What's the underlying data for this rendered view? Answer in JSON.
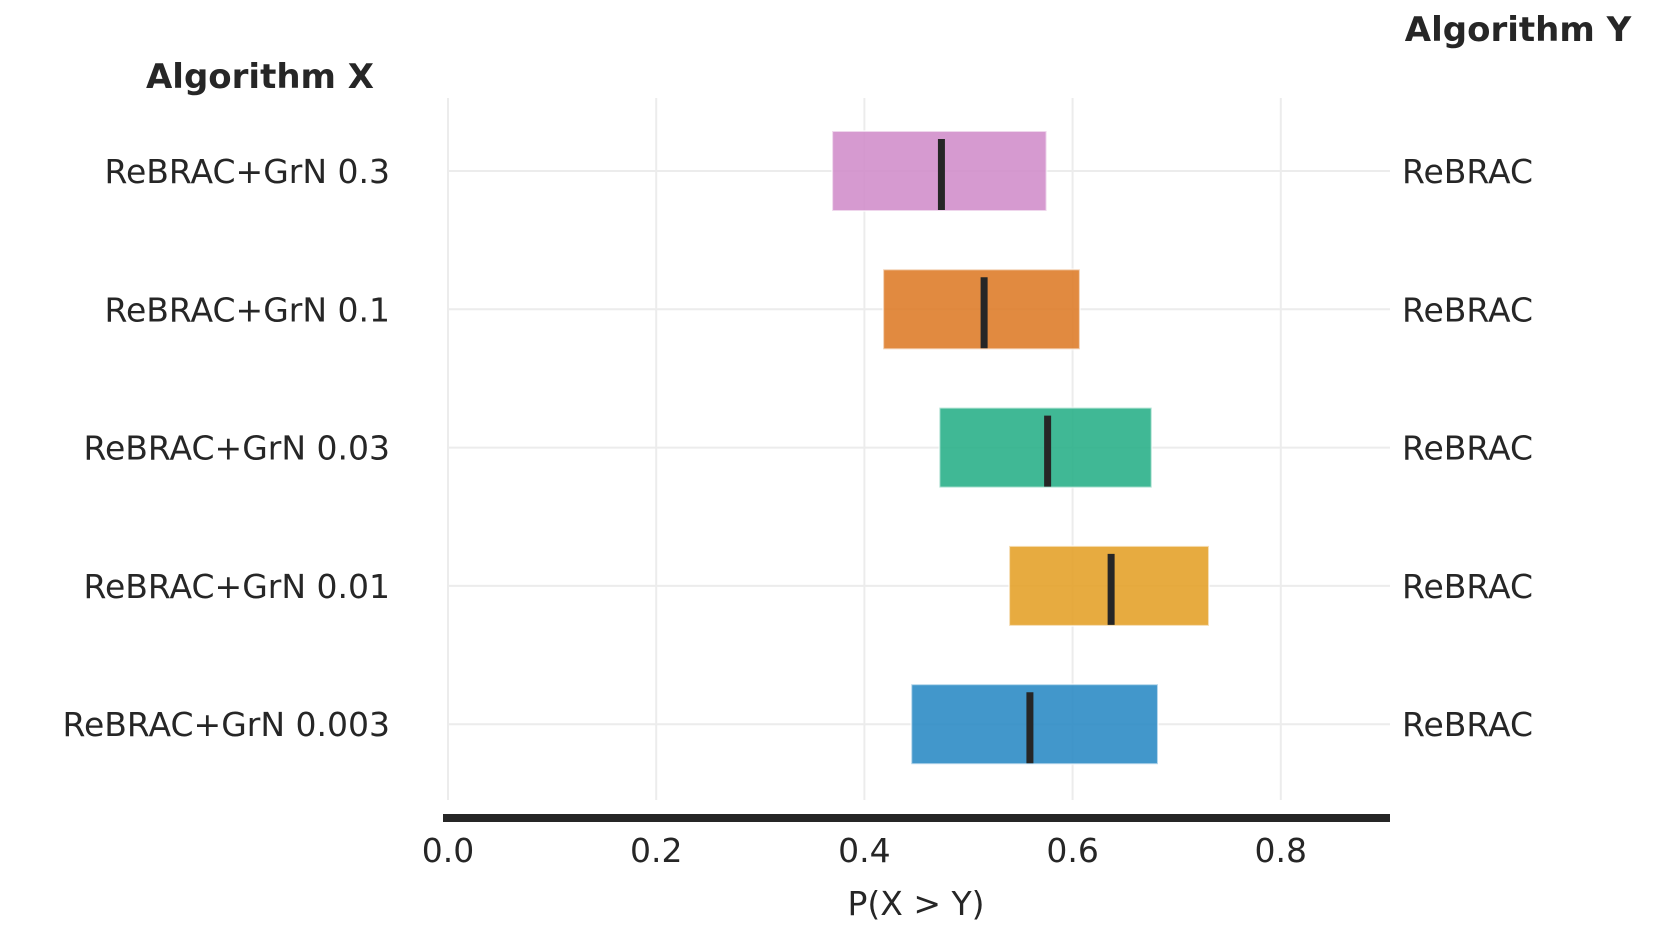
{
  "chart_data": {
    "type": "interval",
    "title_left": "Algorithm X",
    "title_right": "Algorithm Y",
    "xlabel": "P(X > Y)",
    "xlim": [
      0.0,
      0.9
    ],
    "xticks": [
      "0.0",
      "0.2",
      "0.4",
      "0.6",
      "0.8"
    ],
    "tick_values": [
      0.0,
      0.2,
      0.4,
      0.6,
      0.8
    ],
    "grid": true,
    "rows": [
      {
        "algorithm_x": "ReBRAC+GrN 0.3",
        "algorithm_y": "ReBRAC",
        "low": 0.369,
        "high": 0.575,
        "median": 0.474,
        "color": "#d18fcb"
      },
      {
        "algorithm_x": "ReBRAC+GrN 0.1",
        "algorithm_y": "ReBRAC",
        "low": 0.418,
        "high": 0.607,
        "median": 0.515,
        "color": "#de7d2b"
      },
      {
        "algorithm_x": "ReBRAC+GrN 0.03",
        "algorithm_y": "ReBRAC",
        "low": 0.472,
        "high": 0.676,
        "median": 0.576,
        "color": "#2bb08a"
      },
      {
        "algorithm_x": "ReBRAC+GrN 0.01",
        "algorithm_y": "ReBRAC",
        "low": 0.539,
        "high": 0.731,
        "median": 0.637,
        "color": "#e4a22b"
      },
      {
        "algorithm_x": "ReBRAC+GrN 0.003",
        "algorithm_y": "ReBRAC",
        "low": 0.445,
        "high": 0.682,
        "median": 0.559,
        "color": "#2d8cc5"
      }
    ]
  }
}
